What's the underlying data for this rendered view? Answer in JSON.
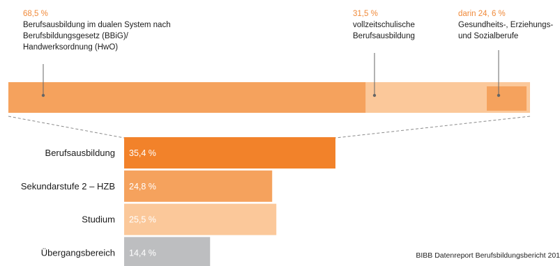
{
  "annotations": [
    {
      "pct": "68,5  %",
      "desc": "Berufsausbildung im dualen System nach\nBerufsbildungsgesetz (BBiG)/\nHandwerksordnung (HwO)"
    },
    {
      "pct": "31,5  %",
      "desc": "vollzeitschulische\nBerufsausbildung"
    },
    {
      "pct": "darin 24,  6 %",
      "desc": "Gesundheits-, Erziehungs-\nund Sozialberufe"
    }
  ],
  "source": "BIBB Datenreport Berufsbildungsbericht 201",
  "colors": {
    "dual": "#f5a25d",
    "school": "#fbc89a",
    "health": "#f5a25d",
    "berufsausbildung": "#f2822a",
    "sekundarstufe": "#f5a25d",
    "studium": "#fbc89a",
    "uebergang": "#bdbec0",
    "dashes": "#8a8a8a"
  },
  "chart_data": [
    {
      "type": "bar",
      "orientation": "horizontal-stacked",
      "categories": [
        "Berufsausbildung im dualen System",
        "vollzeitschulische Berufsausbildung"
      ],
      "values": [
        68.5,
        31.5
      ],
      "subset": {
        "of": "vollzeitschulische Berufsausbildung",
        "label": "Gesundheits-, Erziehungs- und Sozialberufe",
        "value": 24.6
      },
      "title": "",
      "xlabel": "",
      "ylabel": ""
    },
    {
      "type": "bar",
      "orientation": "horizontal",
      "categories": [
        "Berufsausbildung",
        "Sekundarstufe 2 – HZB",
        "Studium",
        "Übergangsbereich"
      ],
      "values": [
        35.4,
        24.8,
        25.5,
        14.4
      ],
      "value_labels": [
        "35,4  %",
        "24,8  %",
        "25,5  %",
        "14,4  %"
      ],
      "title": "",
      "xlabel": "",
      "ylabel": "",
      "xlim": [
        0,
        35.4
      ]
    }
  ]
}
